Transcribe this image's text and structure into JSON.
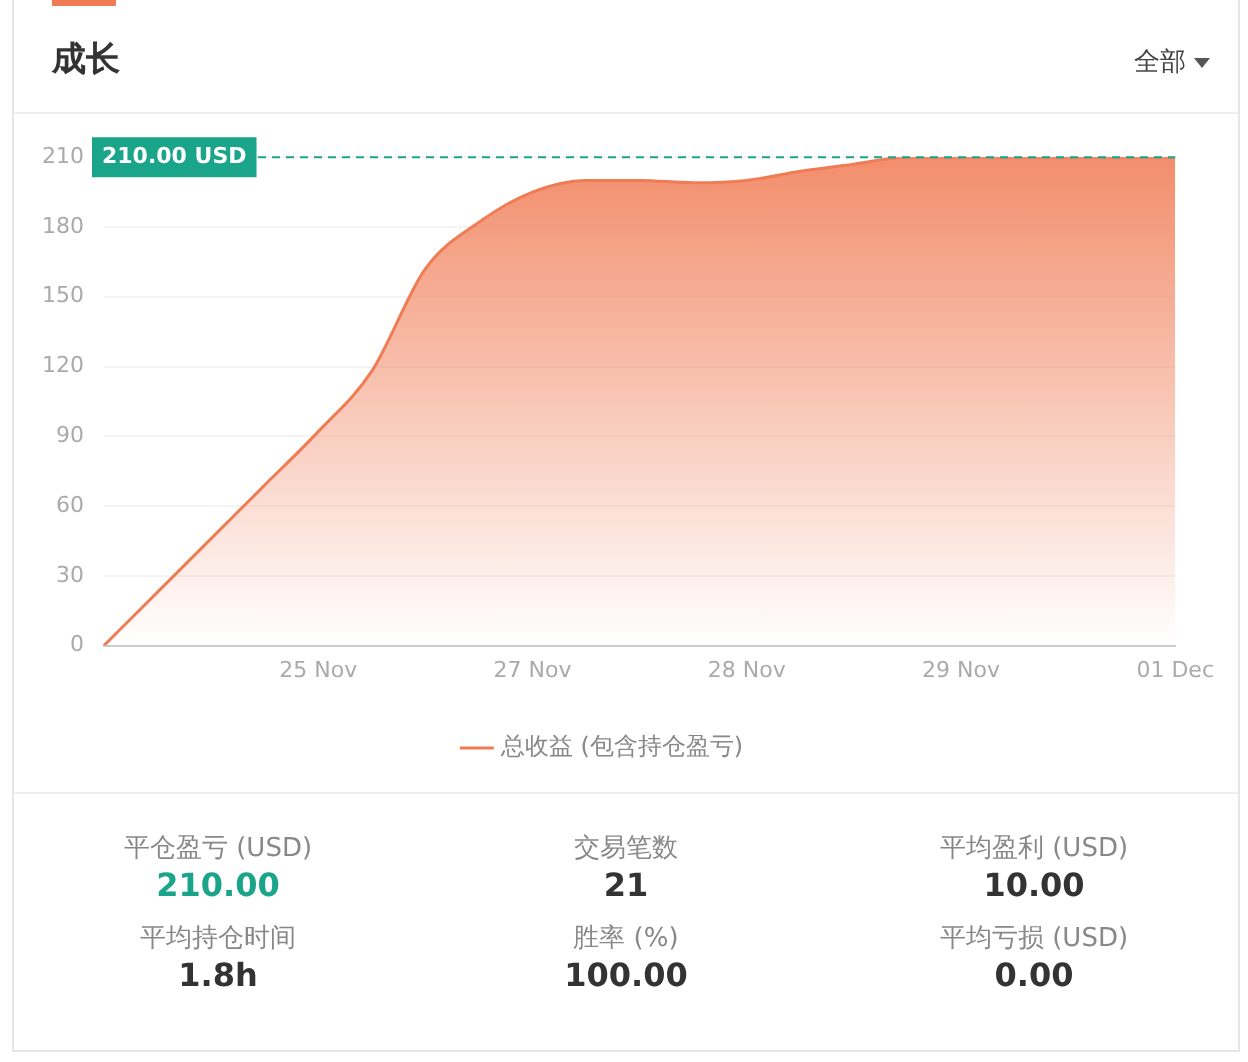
{
  "chart_data": {
    "type": "area",
    "title": "成长",
    "categories": [
      null,
      null,
      null,
      null,
      "25 Nov",
      null,
      null,
      null,
      "27 Nov",
      null,
      null,
      null,
      "28 Nov",
      null,
      null,
      null,
      "29 Nov",
      null,
      null,
      null,
      "01 Dec"
    ],
    "series": [
      {
        "name": "总收益 (包含持仓盈亏)",
        "color": "#f07c55",
        "values": [
          0,
          23,
          46,
          69,
          92,
          118,
          162,
          182,
          195,
          200,
          200,
          199,
          200,
          204,
          207,
          210,
          210,
          210,
          210,
          210,
          210
        ]
      }
    ],
    "ylim": [
      0,
      210
    ],
    "yticks": [
      0,
      30,
      60,
      90,
      120,
      150,
      180,
      210
    ],
    "grid": "y",
    "legend": "bottom",
    "ref_lines": [
      {
        "axis": "y",
        "value": 210,
        "label": "210.00 USD",
        "color": "#1aa58a",
        "line_style": "dashed"
      }
    ],
    "annotations": [
      "全部",
      "平仓盈亏 (USD)",
      "210.00",
      "交易笔数",
      "21",
      "平均盈利 (USD)",
      "10.00",
      "平均持仓时间",
      "1.8h",
      "胜率 (%)",
      "100.00",
      "平均亏损 (USD)",
      "0.00"
    ]
  }
}
